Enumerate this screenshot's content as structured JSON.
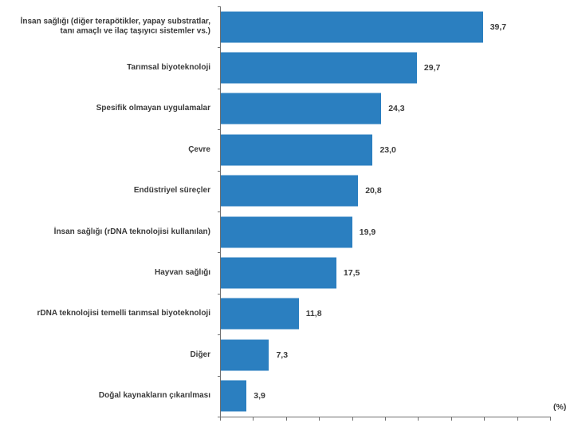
{
  "chart_data": {
    "type": "bar",
    "orientation": "horizontal",
    "title": "",
    "unit_label": "(%)",
    "categories": [
      "İnsan sağlığı (diğer terapötikler, yapay substratlar,\ntanı amaçlı ve ilaç taşıyıcı sistemler vs.)",
      "Tarımsal biyoteknoloji",
      "Spesifik olmayan uygulamalar",
      "Çevre",
      "Endüstriyel süreçler",
      "İnsan sağlığı (rDNA teknolojisi kullanılan)",
      "Hayvan sağlığı",
      "rDNA teknolojisi temelli tarımsal biyoteknoloji",
      "Diğer",
      "Doğal kaynakların çıkarılması"
    ],
    "values": [
      39.7,
      29.7,
      24.3,
      23.0,
      20.8,
      19.9,
      17.5,
      11.8,
      7.3,
      3.9
    ],
    "value_labels": [
      "39,7",
      "29,7",
      "24,3",
      "23,0",
      "20,8",
      "19,9",
      "17,5",
      "11,8",
      "7,3",
      "3,9"
    ],
    "xlim": [
      0,
      50
    ],
    "x_tick_step": 5,
    "x_tick_labels_visible": false,
    "grid": false,
    "legend": null,
    "bar_color": "#2b7fc0",
    "axis_color": "#707070",
    "label_color": "#3a3a3a"
  }
}
